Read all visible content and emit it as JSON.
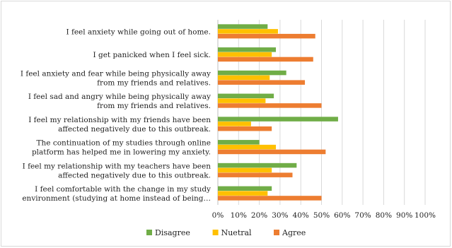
{
  "chart_data": {
    "type": "bar",
    "orientation": "horizontal",
    "categories": [
      [
        "I feel anxiety while going out of home."
      ],
      [
        "I get panicked when I feel sick."
      ],
      [
        "I feel anxiety and fear while being physically away",
        "from my friends and relatives."
      ],
      [
        "I feel sad and angry while being physically away",
        "from my friends and relatives."
      ],
      [
        "I feel my relationship with my friends have been",
        "affected negatively due to this outbreak."
      ],
      [
        "The continuation of my studies through online",
        "platform has helped me in lowering my anxiety."
      ],
      [
        "I feel my relationship with my teachers have been",
        "affected negatively due to this outbreak."
      ],
      [
        "I feel comfortable with the change in my study",
        "environment (studying at home instead of being…"
      ]
    ],
    "series": [
      {
        "name": "Disagree",
        "color": "#70AD47",
        "values": [
          24,
          28,
          33,
          27,
          58,
          20,
          38,
          26
        ]
      },
      {
        "name": "Nuetral",
        "color": "#FFC000",
        "values": [
          29,
          26,
          25,
          23,
          16,
          28,
          26,
          24
        ]
      },
      {
        "name": "Agree",
        "color": "#ED7D31",
        "values": [
          47,
          46,
          42,
          50,
          26,
          52,
          36,
          50
        ]
      }
    ],
    "xlim": [
      0,
      100
    ],
    "xticks": [
      "0%",
      "10%",
      "20%",
      "30%",
      "40%",
      "50%",
      "60%",
      "70%",
      "80%",
      "90%",
      "100%"
    ],
    "grid": true,
    "legend_position": "bottom"
  }
}
